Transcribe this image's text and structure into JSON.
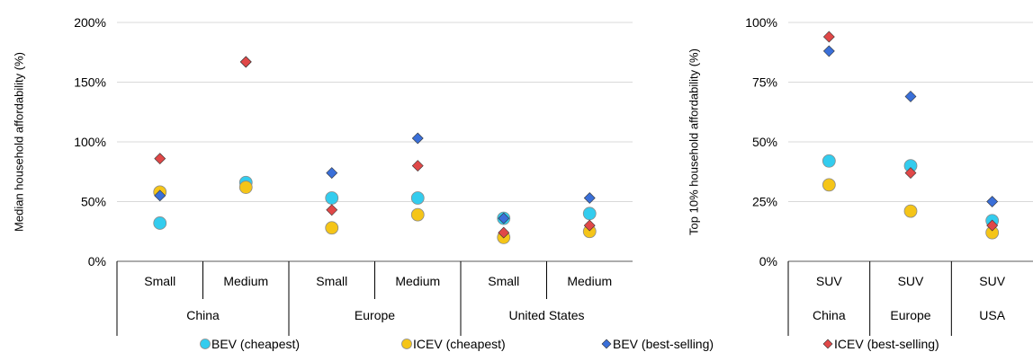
{
  "legend": {
    "placement": "bottom",
    "items": [
      {
        "name": "BEV (cheapest)",
        "marker": "circle",
        "color": "#33ccee"
      },
      {
        "name": "ICEV (cheapest)",
        "marker": "circle",
        "color": "#f5c518"
      },
      {
        "name": "BEV (best-selling)",
        "marker": "diamond",
        "color": "#3a6fd8"
      },
      {
        "name": "ICEV (best-selling)",
        "marker": "diamond",
        "color": "#e04848"
      }
    ]
  },
  "chart_data": [
    {
      "type": "scatter",
      "ylabel": "Median household affordability (%)",
      "ylim": [
        0,
        200
      ],
      "yticks": [
        "0%",
        "50%",
        "100%",
        "150%",
        "200%"
      ],
      "grid": true,
      "categories": [
        "Small",
        "Medium",
        "Small",
        "Medium",
        "Small",
        "Medium"
      ],
      "groups": [
        {
          "label": "China",
          "span": [
            0,
            1
          ]
        },
        {
          "label": "Europe",
          "span": [
            2,
            3
          ]
        },
        {
          "label": "United States",
          "span": [
            4,
            5
          ]
        }
      ],
      "series": [
        {
          "name": "BEV (cheapest)",
          "values": [
            32,
            66,
            53,
            53,
            36,
            40
          ]
        },
        {
          "name": "ICEV (cheapest)",
          "values": [
            58,
            62,
            28,
            39,
            20,
            25
          ]
        },
        {
          "name": "BEV (best-selling)",
          "values": [
            55,
            167,
            74,
            103,
            36,
            53
          ]
        },
        {
          "name": "ICEV (best-selling)",
          "values": [
            86,
            167,
            43,
            80,
            24,
            30
          ]
        }
      ]
    },
    {
      "type": "scatter",
      "ylabel": "Top 10% household affordability (%)",
      "ylim": [
        0,
        100
      ],
      "yticks": [
        "0%",
        "25%",
        "50%",
        "75%",
        "100%"
      ],
      "grid": true,
      "categories": [
        "SUV",
        "SUV",
        "SUV"
      ],
      "groups": [
        {
          "label": "China",
          "span": [
            0,
            0
          ]
        },
        {
          "label": "Europe",
          "span": [
            1,
            1
          ]
        },
        {
          "label": "USA",
          "span": [
            2,
            2
          ]
        }
      ],
      "series": [
        {
          "name": "BEV (cheapest)",
          "values": [
            42,
            40,
            17
          ]
        },
        {
          "name": "ICEV (cheapest)",
          "values": [
            32,
            21,
            12
          ]
        },
        {
          "name": "BEV (best-selling)",
          "values": [
            88,
            69,
            25
          ]
        },
        {
          "name": "ICEV (best-selling)",
          "values": [
            94,
            37,
            15
          ]
        }
      ]
    }
  ]
}
